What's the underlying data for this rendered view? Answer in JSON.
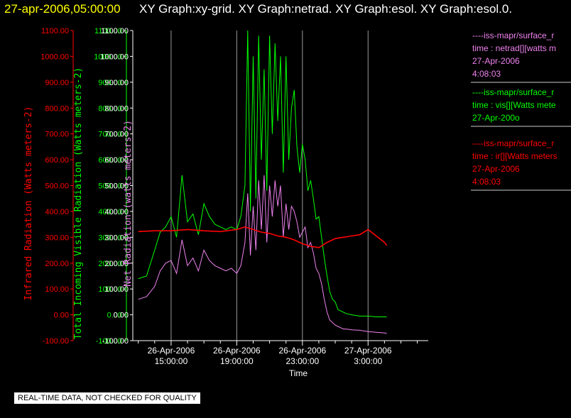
{
  "title": {
    "date": "27-apr-2006,05:00:00",
    "graphs": "XY Graph:xy-grid.  XY Graph:netrad.  XY Graph:esol.  XY Graph:esol.0."
  },
  "quality_note": "REAL-TIME DATA, NOT CHECKED FOR QUALITY",
  "colors": {
    "ir": "#ff0000",
    "vis": "#00ff00",
    "net": "#ee82ee",
    "axis_white": "#ffffff"
  },
  "chart_data": {
    "type": "line",
    "xlabel": "Time",
    "x_ticks": [
      {
        "line1": "26-Apr-2006",
        "line2": "15:00:00"
      },
      {
        "line1": "26-Apr-2006",
        "line2": "19:00:00"
      },
      {
        "line1": "26-Apr-2006",
        "line2": "23:00:00"
      },
      {
        "line1": "27-Apr-2006",
        "line2": "3:00:00"
      }
    ],
    "xlim": [
      "2006-04-26 12:40",
      "2006-04-27 06:40"
    ],
    "ylim": [
      -100,
      1100
    ],
    "y_ticks": [
      "1100.00",
      "1000.00",
      "900.00",
      "800.00",
      "700.00",
      "600.00",
      "500.00",
      "400.00",
      "300.00",
      "200.00",
      "100.00",
      "0.00",
      "-100.00"
    ],
    "axes": [
      {
        "key": "ir",
        "label": "Infrared Radiation (Watts meters-2)"
      },
      {
        "key": "vis",
        "label": "Total Incoming Visible Radiation (Watts meters-2)"
      },
      {
        "key": "net",
        "label": "Net Radiation (watts meters-2)"
      }
    ],
    "legend": [
      {
        "key": "net",
        "lines": [
          "----iss-mapr/surface_r",
          "time : netrad[][watts m",
          "27-Apr-2006",
          "4:08:03"
        ]
      },
      {
        "key": "vis",
        "lines": [
          "----iss-mapr/surface_r",
          "time : vis[][Watts mete",
          "27-Apr-200o"
        ]
      },
      {
        "key": "ir",
        "lines": [
          "----iss-mapr/surface_r",
          "time : ir[][Watts meters",
          "27-Apr-2006",
          "4:08:03"
        ]
      }
    ],
    "series": [
      {
        "key": "vis",
        "x": [
          "2006-04-26 13:00",
          "2006-04-26 13:30",
          "2006-04-26 14:00",
          "2006-04-26 14:20",
          "2006-04-26 14:40",
          "2006-04-26 15:00",
          "2006-04-26 15:20",
          "2006-04-26 15:40",
          "2006-04-26 16:00",
          "2006-04-26 16:20",
          "2006-04-26 16:40",
          "2006-04-26 17:00",
          "2006-04-26 17:20",
          "2006-04-26 17:40",
          "2006-04-26 18:00",
          "2006-04-26 18:20",
          "2006-04-26 18:40",
          "2006-04-26 19:00",
          "2006-04-26 19:15",
          "2006-04-26 19:30",
          "2006-04-26 19:40",
          "2006-04-26 19:50",
          "2006-04-26 20:00",
          "2006-04-26 20:10",
          "2006-04-26 20:20",
          "2006-04-26 20:30",
          "2006-04-26 20:40",
          "2006-04-26 20:50",
          "2006-04-26 21:00",
          "2006-04-26 21:10",
          "2006-04-26 21:20",
          "2006-04-26 21:30",
          "2006-04-26 21:40",
          "2006-04-26 21:50",
          "2006-04-26 22:00",
          "2006-04-26 22:10",
          "2006-04-26 22:20",
          "2006-04-26 22:30",
          "2006-04-26 22:40",
          "2006-04-26 22:50",
          "2006-04-26 23:00",
          "2006-04-26 23:10",
          "2006-04-26 23:20",
          "2006-04-26 23:30",
          "2006-04-26 23:40",
          "2006-04-26 23:50",
          "2006-04-27 00:00",
          "2006-04-27 00:10",
          "2006-04-27 00:20",
          "2006-04-27 00:30",
          "2006-04-27 00:40",
          "2006-04-27 00:50",
          "2006-04-27 01:00",
          "2006-04-27 01:10",
          "2006-04-27 01:20",
          "2006-04-27 01:30",
          "2006-04-27 01:40",
          "2006-04-27 02:00",
          "2006-04-27 02:30",
          "2006-04-27 03:00",
          "2006-04-27 03:30",
          "2006-04-27 04:00",
          "2006-04-27 04:08"
        ],
        "y": [
          140,
          150,
          250,
          320,
          340,
          380,
          300,
          540,
          360,
          390,
          310,
          430,
          380,
          350,
          340,
          330,
          340,
          330,
          380,
          500,
          1100,
          400,
          1000,
          450,
          1080,
          600,
          950,
          480,
          1080,
          700,
          1050,
          750,
          1000,
          550,
          1000,
          600,
          800,
          870,
          650,
          550,
          660,
          600,
          480,
          520,
          450,
          370,
          380,
          300,
          220,
          150,
          90,
          60,
          50,
          20,
          15,
          10,
          5,
          0,
          -5,
          -5,
          -8,
          -8,
          -8
        ]
      },
      {
        "key": "net",
        "x": [
          "2006-04-26 13:00",
          "2006-04-26 13:30",
          "2006-04-26 14:00",
          "2006-04-26 14:20",
          "2006-04-26 14:40",
          "2006-04-26 15:00",
          "2006-04-26 15:20",
          "2006-04-26 15:40",
          "2006-04-26 16:00",
          "2006-04-26 16:20",
          "2006-04-26 16:40",
          "2006-04-26 17:00",
          "2006-04-26 17:20",
          "2006-04-26 17:40",
          "2006-04-26 18:00",
          "2006-04-26 18:20",
          "2006-04-26 18:40",
          "2006-04-26 19:00",
          "2006-04-26 19:15",
          "2006-04-26 19:30",
          "2006-04-26 19:40",
          "2006-04-26 19:50",
          "2006-04-26 20:00",
          "2006-04-26 20:10",
          "2006-04-26 20:20",
          "2006-04-26 20:30",
          "2006-04-26 20:40",
          "2006-04-26 20:50",
          "2006-04-26 21:00",
          "2006-04-26 21:10",
          "2006-04-26 21:20",
          "2006-04-26 21:30",
          "2006-04-26 21:40",
          "2006-04-26 21:50",
          "2006-04-26 22:00",
          "2006-04-26 22:10",
          "2006-04-26 22:20",
          "2006-04-26 22:30",
          "2006-04-26 22:40",
          "2006-04-26 22:50",
          "2006-04-26 23:00",
          "2006-04-26 23:10",
          "2006-04-26 23:20",
          "2006-04-26 23:30",
          "2006-04-26 23:40",
          "2006-04-26 23:50",
          "2006-04-27 00:00",
          "2006-04-27 00:10",
          "2006-04-27 00:20",
          "2006-04-27 00:30",
          "2006-04-27 00:40",
          "2006-04-27 00:50",
          "2006-04-27 01:00",
          "2006-04-27 01:10",
          "2006-04-27 01:20",
          "2006-04-27 01:30",
          "2006-04-27 01:40",
          "2006-04-27 02:00",
          "2006-04-27 02:30",
          "2006-04-27 03:00",
          "2006-04-27 03:30",
          "2006-04-27 04:00",
          "2006-04-27 04:08"
        ],
        "y": [
          60,
          70,
          110,
          170,
          200,
          210,
          160,
          290,
          190,
          220,
          170,
          250,
          210,
          190,
          180,
          170,
          180,
          160,
          190,
          280,
          470,
          230,
          420,
          250,
          520,
          330,
          540,
          280,
          500,
          380,
          520,
          420,
          500,
          300,
          430,
          330,
          420,
          400,
          360,
          300,
          320,
          340,
          260,
          280,
          240,
          180,
          160,
          120,
          60,
          10,
          -20,
          -30,
          -40,
          -45,
          -50,
          -55,
          -55,
          -58,
          -60,
          -65,
          -68,
          -70,
          -72
        ]
      },
      {
        "key": "ir",
        "x": [
          "2006-04-26 13:00",
          "2006-04-26 14:00",
          "2006-04-26 15:00",
          "2006-04-26 16:00",
          "2006-04-26 17:00",
          "2006-04-26 18:00",
          "2006-04-26 19:00",
          "2006-04-26 19:30",
          "2006-04-26 20:00",
          "2006-04-26 20:30",
          "2006-04-26 21:00",
          "2006-04-26 21:30",
          "2006-04-26 22:00",
          "2006-04-26 22:30",
          "2006-04-26 23:00",
          "2006-04-26 23:30",
          "2006-04-27 00:00",
          "2006-04-27 00:30",
          "2006-04-27 01:00",
          "2006-04-27 01:30",
          "2006-04-27 02:00",
          "2006-04-27 02:30",
          "2006-04-27 03:00",
          "2006-04-27 03:30",
          "2006-04-27 04:00",
          "2006-04-27 04:08"
        ],
        "y": [
          322,
          325,
          325,
          330,
          325,
          322,
          330,
          340,
          330,
          320,
          315,
          305,
          300,
          290,
          275,
          265,
          260,
          280,
          295,
          300,
          305,
          310,
          330,
          305,
          280,
          268
        ]
      }
    ]
  }
}
